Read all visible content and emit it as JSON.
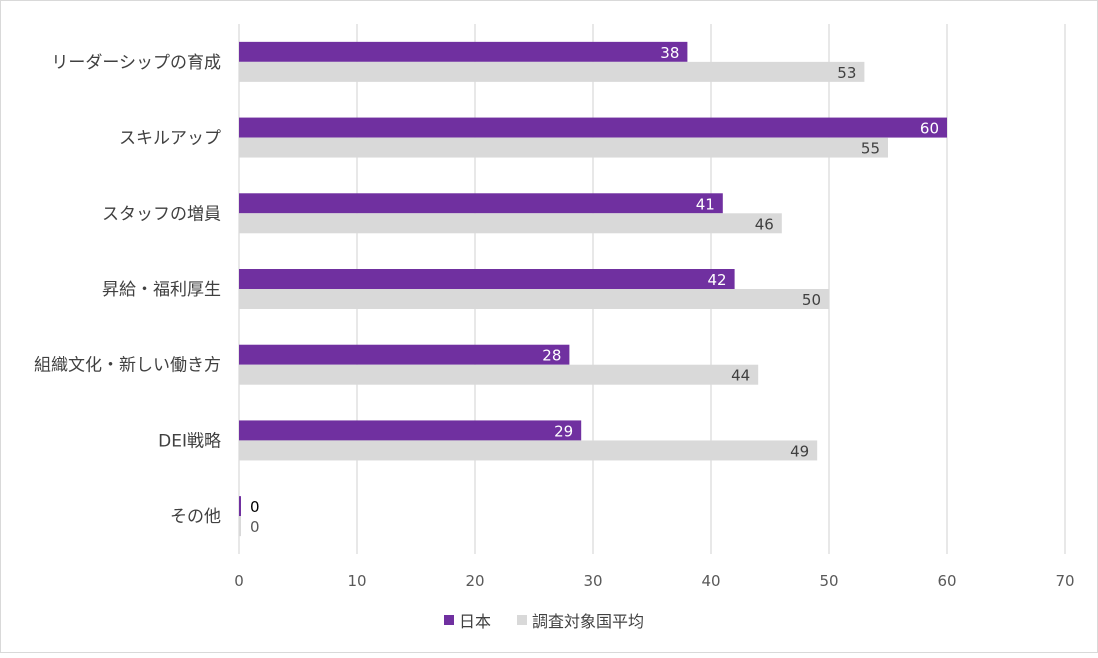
{
  "chart_data": {
    "type": "bar",
    "orientation": "horizontal",
    "categories": [
      "リーダーシップの育成",
      "スキルアップ",
      "スタッフの増員",
      "昇給・福利厚生",
      "組織文化・新しい働き方",
      "DEI戦略",
      "その他"
    ],
    "series": [
      {
        "name": "日本",
        "color": "#7030a0",
        "values": [
          38,
          60,
          41,
          42,
          28,
          29,
          0
        ]
      },
      {
        "name": "調査対象国平均",
        "color": "#d9d9d9",
        "values": [
          53,
          55,
          46,
          50,
          44,
          49,
          0
        ]
      }
    ],
    "xlim": [
      0,
      70
    ],
    "xticks": [
      0,
      10,
      20,
      30,
      40,
      50,
      60,
      70
    ],
    "grid": "vertical",
    "legend_position": "bottom",
    "data_labels": true
  }
}
